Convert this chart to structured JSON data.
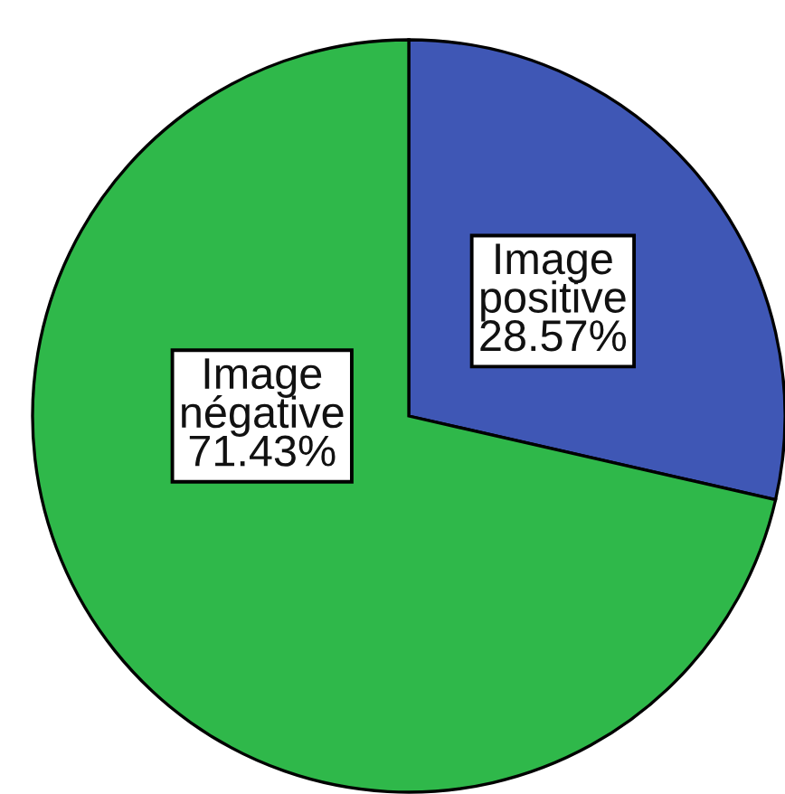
{
  "chart_data": {
    "type": "pie",
    "categories": [
      "Image positive",
      "Image négative"
    ],
    "values": [
      28.57,
      71.43
    ],
    "colors": [
      "#3f57b5",
      "#2fb84a"
    ],
    "value_labels": [
      "28.57%",
      "71.43%"
    ]
  }
}
